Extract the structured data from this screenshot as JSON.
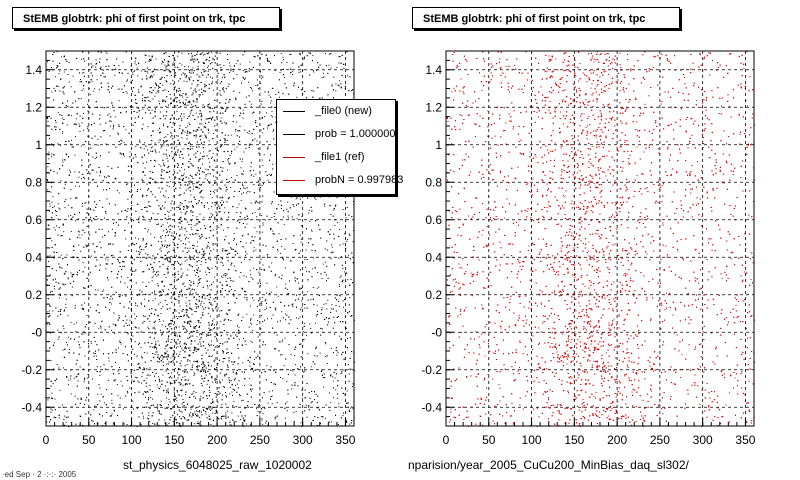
{
  "footer": {
    "stamp": "·ed Sep · 2 ·:·:· 2005"
  },
  "chart_data": [
    {
      "type": "scatter",
      "title": "StEMB globtrk: phi of first point on trk, tpc",
      "xlabel": "st_physics_6048025_raw_1020002",
      "ylabel": "",
      "xlim": [
        0,
        360
      ],
      "ylim": [
        -0.5,
        1.5
      ],
      "xticks": [
        0,
        50,
        100,
        150,
        200,
        250,
        300,
        350
      ],
      "yticks": [
        -0.4,
        -0.2,
        0,
        0.2,
        0.4,
        0.6,
        0.8,
        1,
        1.2,
        1.4
      ],
      "ytick_labels": [
        "-0.4",
        "-0.2",
        "-0",
        "0.2",
        "0.4",
        "0.6",
        "0.8",
        "1",
        "1.2",
        "1.4"
      ],
      "grid": true,
      "point_color": "#000000",
      "density_peak_x": 165,
      "approx_points": 9000,
      "legend": {
        "placement": "top-right",
        "entries": [
          {
            "label": "_file0 (new)",
            "color": "#000000"
          },
          {
            "label": "prob = 1.000000",
            "color": "#000000"
          },
          {
            "label": "_file1 (ref)",
            "color": "#cc0000"
          },
          {
            "label": "probN = 0.997983",
            "color": "#cc0000"
          }
        ]
      }
    },
    {
      "type": "scatter",
      "title": "StEMB globtrk: phi of first point on trk, tpc",
      "xlabel": "nparision/year_2005_CuCu200_MinBias_daq_sl302/",
      "ylabel": "",
      "xlim": [
        0,
        360
      ],
      "ylim": [
        -0.5,
        1.5
      ],
      "xticks": [
        0,
        50,
        100,
        150,
        200,
        250,
        300,
        350
      ],
      "yticks": [
        -0.4,
        -0.2,
        0,
        0.2,
        0.4,
        0.6,
        0.8,
        1,
        1.2,
        1.4
      ],
      "ytick_labels": [
        "-0.4",
        "-0.2",
        "-0",
        "0.2",
        "0.4",
        "0.6",
        "0.8",
        "1",
        "1.2",
        "1.4"
      ],
      "grid": true,
      "point_color": "#dd0000",
      "density_peak_x": 165,
      "approx_points": 9000
    }
  ]
}
